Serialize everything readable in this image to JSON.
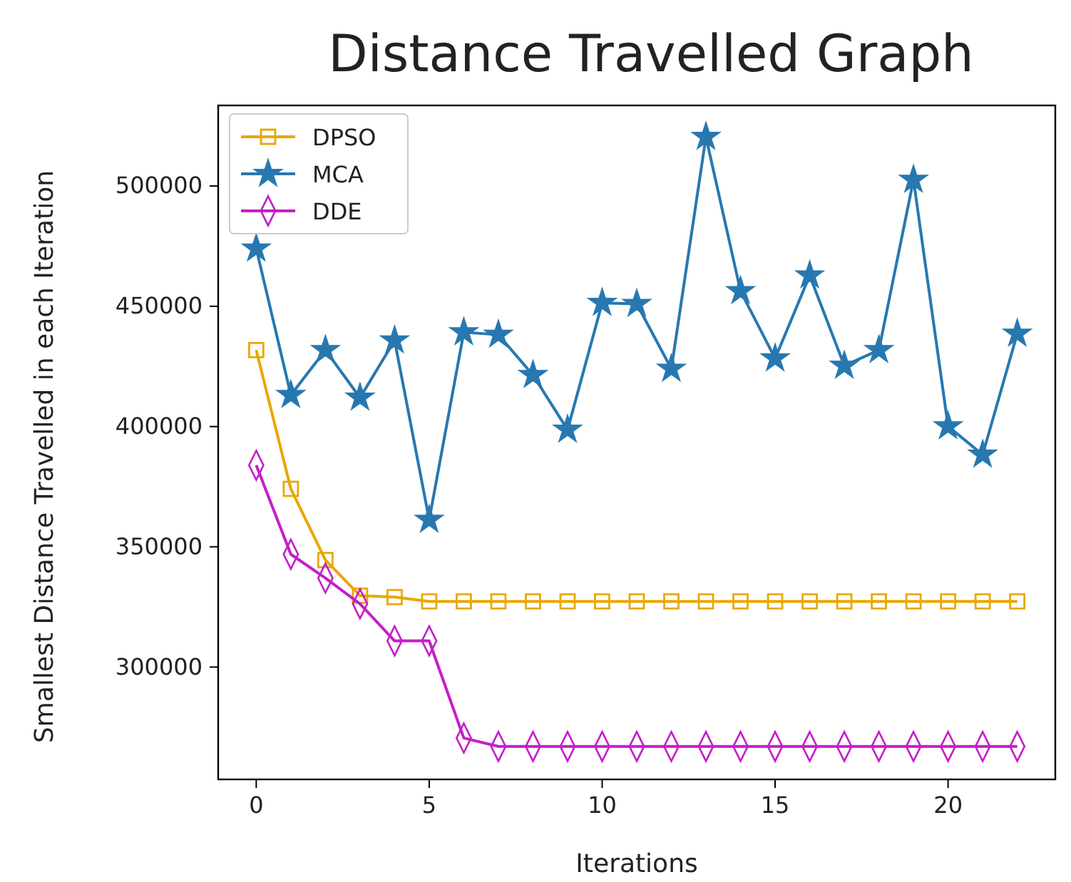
{
  "chart_data": {
    "type": "line",
    "title": "Distance Travelled Graph",
    "xlabel": "Iterations",
    "ylabel": "Smallest Distance Travelled in each Iteration",
    "x": [
      0,
      1,
      2,
      3,
      4,
      5,
      6,
      7,
      8,
      9,
      10,
      11,
      12,
      13,
      14,
      15,
      16,
      17,
      18,
      19,
      20,
      21,
      22
    ],
    "series": [
      {
        "name": "DPSO",
        "color": "#e8a800",
        "marker": "square",
        "values": [
          431800,
          374100,
          344500,
          329700,
          329100,
          327300,
          327300,
          327300,
          327300,
          327300,
          327300,
          327300,
          327300,
          327300,
          327300,
          327300,
          327300,
          327300,
          327300,
          327300,
          327300,
          327300,
          327300
        ]
      },
      {
        "name": "MCA",
        "color": "#2878b0",
        "marker": "star",
        "values": [
          474000,
          413100,
          431800,
          412000,
          435800,
          361200,
          439200,
          438200,
          421400,
          398700,
          451400,
          451000,
          424000,
          520400,
          456300,
          428300,
          462800,
          425300,
          431800,
          502600,
          400100,
          388300,
          438600
        ]
      },
      {
        "name": "DDE",
        "color": "#c41fc8",
        "marker": "diamond",
        "values": [
          383900,
          346900,
          337000,
          326300,
          310900,
          310900,
          270500,
          267000,
          267000,
          267000,
          267000,
          267000,
          267000,
          267000,
          267000,
          267000,
          267000,
          267000,
          267000,
          267000,
          267000,
          267000,
          267000
        ]
      }
    ],
    "xlim": [
      -1.1,
      23.1
    ],
    "xticks": [
      0,
      5,
      10,
      15,
      20
    ],
    "ylim": [
      253300,
      533500
    ],
    "yticks": [
      300000,
      350000,
      400000,
      450000,
      500000
    ],
    "grid": false,
    "legend": "top left",
    "line_style": "solid"
  }
}
